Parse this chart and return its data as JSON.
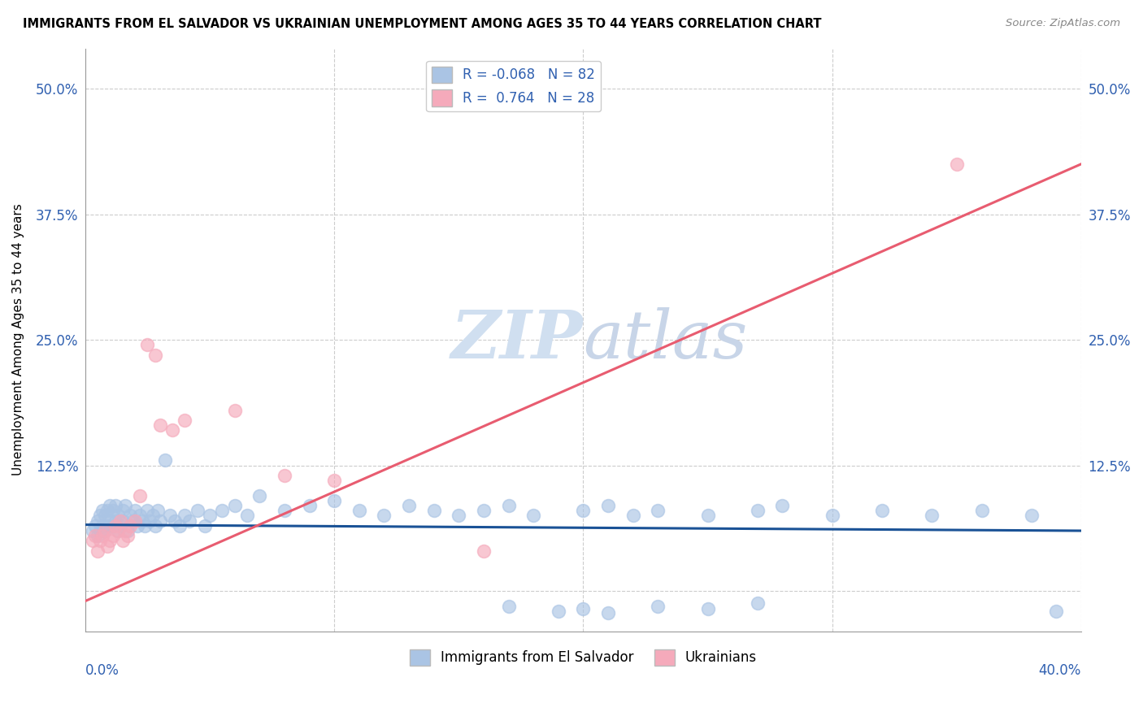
{
  "title": "IMMIGRANTS FROM EL SALVADOR VS UKRAINIAN UNEMPLOYMENT AMONG AGES 35 TO 44 YEARS CORRELATION CHART",
  "source": "Source: ZipAtlas.com",
  "ylabel": "Unemployment Among Ages 35 to 44 years",
  "xlim": [
    0.0,
    0.4
  ],
  "ylim": [
    -0.04,
    0.54
  ],
  "ytick_values": [
    0.0,
    0.125,
    0.25,
    0.375,
    0.5
  ],
  "ytick_labels": [
    "",
    "12.5%",
    "25.0%",
    "37.5%",
    "50.0%"
  ],
  "xtick_values": [
    0.0,
    0.1,
    0.2,
    0.3,
    0.4
  ],
  "blue_color": "#aac4e4",
  "pink_color": "#f5aabb",
  "blue_line_color": "#1a5296",
  "pink_line_color": "#e85c70",
  "tick_color": "#3060b0",
  "watermark_color": "#d0dff0",
  "blue_R": -0.068,
  "blue_N": 82,
  "pink_R": 0.764,
  "pink_N": 28,
  "blue_line_x": [
    0.0,
    0.4
  ],
  "blue_line_y": [
    0.066,
    0.06
  ],
  "pink_line_x": [
    0.0,
    0.4
  ],
  "pink_line_y": [
    -0.01,
    0.425
  ],
  "blue_x": [
    0.003,
    0.004,
    0.005,
    0.005,
    0.006,
    0.006,
    0.007,
    0.007,
    0.008,
    0.008,
    0.009,
    0.009,
    0.01,
    0.01,
    0.011,
    0.011,
    0.012,
    0.012,
    0.013,
    0.013,
    0.014,
    0.015,
    0.015,
    0.016,
    0.017,
    0.018,
    0.019,
    0.02,
    0.021,
    0.022,
    0.023,
    0.024,
    0.025,
    0.026,
    0.027,
    0.028,
    0.029,
    0.03,
    0.032,
    0.034,
    0.036,
    0.038,
    0.04,
    0.042,
    0.045,
    0.048,
    0.05,
    0.055,
    0.06,
    0.065,
    0.07,
    0.08,
    0.09,
    0.1,
    0.11,
    0.12,
    0.13,
    0.14,
    0.15,
    0.16,
    0.17,
    0.18,
    0.2,
    0.21,
    0.22,
    0.23,
    0.25,
    0.27,
    0.28,
    0.3,
    0.32,
    0.34,
    0.36,
    0.38,
    0.17,
    0.19,
    0.2,
    0.21,
    0.23,
    0.25,
    0.27,
    0.39
  ],
  "blue_y": [
    0.06,
    0.065,
    0.055,
    0.07,
    0.06,
    0.075,
    0.065,
    0.08,
    0.06,
    0.075,
    0.065,
    0.08,
    0.07,
    0.085,
    0.065,
    0.08,
    0.07,
    0.085,
    0.06,
    0.075,
    0.065,
    0.08,
    0.07,
    0.085,
    0.06,
    0.075,
    0.07,
    0.08,
    0.065,
    0.075,
    0.07,
    0.065,
    0.08,
    0.07,
    0.075,
    0.065,
    0.08,
    0.07,
    0.13,
    0.075,
    0.07,
    0.065,
    0.075,
    0.07,
    0.08,
    0.065,
    0.075,
    0.08,
    0.085,
    0.075,
    0.095,
    0.08,
    0.085,
    0.09,
    0.08,
    0.075,
    0.085,
    0.08,
    0.075,
    0.08,
    0.085,
    0.075,
    0.08,
    0.085,
    0.075,
    0.08,
    0.075,
    0.08,
    0.085,
    0.075,
    0.08,
    0.075,
    0.08,
    0.075,
    -0.015,
    -0.02,
    -0.018,
    -0.022,
    -0.015,
    -0.018,
    -0.012,
    -0.02
  ],
  "pink_x": [
    0.003,
    0.004,
    0.005,
    0.006,
    0.007,
    0.008,
    0.009,
    0.01,
    0.011,
    0.012,
    0.013,
    0.014,
    0.015,
    0.016,
    0.017,
    0.018,
    0.02,
    0.022,
    0.025,
    0.028,
    0.03,
    0.035,
    0.04,
    0.06,
    0.08,
    0.1,
    0.16,
    0.35
  ],
  "pink_y": [
    0.05,
    0.055,
    0.04,
    0.05,
    0.055,
    0.06,
    0.045,
    0.05,
    0.055,
    0.065,
    0.06,
    0.07,
    0.05,
    0.06,
    0.055,
    0.065,
    0.07,
    0.095,
    0.245,
    0.235,
    0.165,
    0.16,
    0.17,
    0.18,
    0.115,
    0.11,
    0.04,
    0.425
  ]
}
